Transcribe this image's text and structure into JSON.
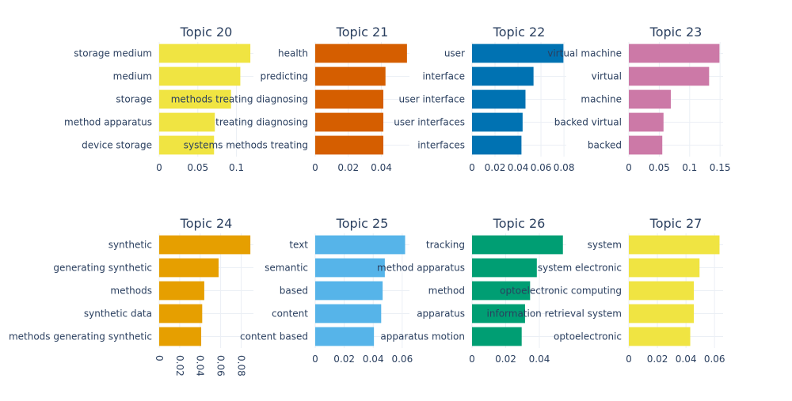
{
  "chart_data": [
    {
      "type": "bar",
      "orientation": "horizontal",
      "title": "Topic 20",
      "color": "#F0E442",
      "categories": [
        "storage medium",
        "medium",
        "storage",
        "method apparatus",
        "device storage"
      ],
      "values": [
        0.118,
        0.105,
        0.093,
        0.072,
        0.071
      ],
      "xlim": [
        0,
        0.122
      ],
      "xticks": [
        0,
        0.05,
        0.1
      ],
      "xtick_labels": [
        "0",
        "0.05",
        "0.1"
      ],
      "grid": true
    },
    {
      "type": "bar",
      "orientation": "horizontal",
      "title": "Topic 21",
      "color": "#D55E00",
      "categories": [
        "health",
        "predicting",
        "methods treating diagnosing",
        "treating diagnosing",
        "systems methods treating"
      ],
      "values": [
        0.0555,
        0.0425,
        0.0412,
        0.0412,
        0.0412
      ],
      "xlim": [
        0,
        0.057
      ],
      "xticks": [
        0,
        0.02,
        0.04
      ],
      "xtick_labels": [
        "0",
        "0.02",
        "0.04"
      ],
      "grid": true
    },
    {
      "type": "bar",
      "orientation": "horizontal",
      "title": "Topic 22",
      "color": "#0072B2",
      "categories": [
        "user",
        "interface",
        "user interface",
        "user interfaces",
        "interfaces"
      ],
      "values": [
        0.0795,
        0.0535,
        0.0465,
        0.044,
        0.043
      ],
      "xlim": [
        0,
        0.082
      ],
      "xticks": [
        0,
        0.02,
        0.04,
        0.06,
        0.08
      ],
      "xtick_labels": [
        "0",
        "0.02",
        "0.04",
        "0.06",
        "0.08"
      ],
      "grid": true
    },
    {
      "type": "bar",
      "orientation": "horizontal",
      "title": "Topic 23",
      "color": "#CC79A7",
      "categories": [
        "virtual machine",
        "virtual",
        "machine",
        "backed virtual",
        "backed"
      ],
      "values": [
        0.149,
        0.132,
        0.069,
        0.057,
        0.055
      ],
      "xlim": [
        0,
        0.155
      ],
      "xticks": [
        0,
        0.05,
        0.1,
        0.15
      ],
      "xtick_labels": [
        "0",
        "0.05",
        "0.1",
        "0.15"
      ],
      "grid": true
    },
    {
      "type": "bar",
      "orientation": "horizontal",
      "title": "Topic 24",
      "color": "#E69F00",
      "categories": [
        "synthetic",
        "generating synthetic",
        "methods",
        "synthetic data",
        "methods generating synthetic"
      ],
      "values": [
        0.089,
        0.058,
        0.044,
        0.042,
        0.041
      ],
      "xlim": [
        0,
        0.092
      ],
      "xticks": [
        0,
        0.02,
        0.04,
        0.06,
        0.08
      ],
      "xtick_labels": [
        "0",
        "0.02",
        "0.04",
        "0.06",
        "0.08"
      ],
      "xtick_rotation": 90,
      "grid": true
    },
    {
      "type": "bar",
      "orientation": "horizontal",
      "title": "Topic 25",
      "color": "#56B4E9",
      "categories": [
        "text",
        "semantic",
        "based",
        "content",
        "content based"
      ],
      "values": [
        0.062,
        0.048,
        0.0465,
        0.0455,
        0.0405
      ],
      "xlim": [
        0,
        0.065
      ],
      "xticks": [
        0,
        0.02,
        0.04,
        0.06
      ],
      "xtick_labels": [
        "0",
        "0.02",
        "0.04",
        "0.06"
      ],
      "grid": true
    },
    {
      "type": "bar",
      "orientation": "horizontal",
      "title": "Topic 26",
      "color": "#009E73",
      "categories": [
        "tracking",
        "method apparatus",
        "method",
        "apparatus",
        "apparatus motion"
      ],
      "values": [
        0.054,
        0.0385,
        0.0345,
        0.0315,
        0.0295
      ],
      "xlim": [
        0,
        0.056
      ],
      "xticks": [
        0,
        0.02,
        0.04
      ],
      "xtick_labels": [
        "0",
        "0.02",
        "0.04"
      ],
      "grid": true
    },
    {
      "type": "bar",
      "orientation": "horizontal",
      "title": "Topic 27",
      "color": "#F0E442",
      "categories": [
        "system",
        "system electronic",
        "optoelectronic computing",
        "information retrieval system",
        "optoelectronic"
      ],
      "values": [
        0.0635,
        0.0495,
        0.0455,
        0.0455,
        0.043
      ],
      "xlim": [
        0,
        0.066
      ],
      "xticks": [
        0,
        0.02,
        0.04,
        0.06
      ],
      "xtick_labels": [
        "0",
        "0.02",
        "0.04",
        "0.06"
      ],
      "grid": true
    }
  ]
}
